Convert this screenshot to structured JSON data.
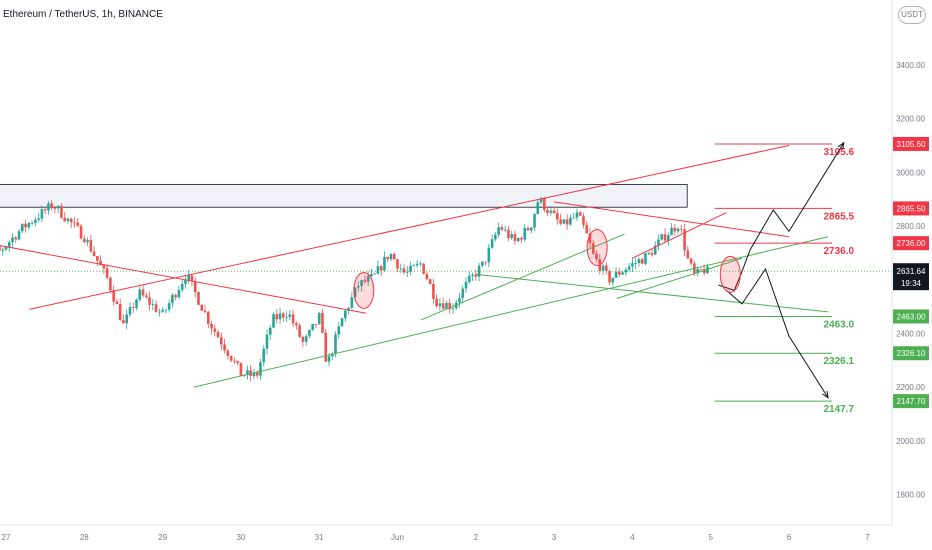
{
  "header": {
    "symbol_line": "Ethereum / TetherUS, 1h, BINANCE",
    "currency_badge": "USDT"
  },
  "colors": {
    "bull": "#26a69a",
    "bear": "#ef5350",
    "resistance": "#f23645",
    "support": "#4caf50",
    "last_price": "#131722",
    "zone_fill": "#f0f2f8",
    "axis_text": "#787b86"
  },
  "chart_data": {
    "type": "candlestick",
    "symbol": "Ethereum / TetherUS",
    "interval": "1h",
    "exchange": "BINANCE",
    "x_tick_labels": [
      "27",
      "28",
      "29",
      "30",
      "31",
      "Jun",
      "2",
      "3",
      "4",
      "5",
      "6",
      "7"
    ],
    "y_tick_labels": [
      "3400.00",
      "3200.00",
      "3000.00",
      "2800.00",
      "2400.00",
      "2200.00",
      "2000.00",
      "1800.00"
    ],
    "ylim": [
      1750,
      3550
    ],
    "x_domain_days": [
      -0.5,
      10.5
    ],
    "close_path": [
      [
        -0.5,
        2880
      ],
      [
        -0.3,
        2760
      ],
      [
        -0.1,
        2700
      ],
      [
        0.2,
        2790
      ],
      [
        0.6,
        2880
      ],
      [
        1.0,
        2760
      ],
      [
        1.3,
        2600
      ],
      [
        1.5,
        2430
      ],
      [
        1.7,
        2550
      ],
      [
        2.0,
        2470
      ],
      [
        2.3,
        2620
      ],
      [
        2.6,
        2440
      ],
      [
        2.9,
        2300
      ],
      [
        3.0,
        2250
      ],
      [
        3.2,
        2240
      ],
      [
        3.4,
        2450
      ],
      [
        3.6,
        2480
      ],
      [
        3.8,
        2360
      ],
      [
        4.0,
        2460
      ],
      [
        4.1,
        2280
      ],
      [
        4.3,
        2460
      ],
      [
        4.5,
        2580
      ],
      [
        4.7,
        2610
      ],
      [
        4.9,
        2700
      ],
      [
        5.1,
        2620
      ],
      [
        5.3,
        2660
      ],
      [
        5.5,
        2520
      ],
      [
        5.7,
        2500
      ],
      [
        5.9,
        2590
      ],
      [
        6.1,
        2660
      ],
      [
        6.3,
        2800
      ],
      [
        6.5,
        2740
      ],
      [
        6.7,
        2800
      ],
      [
        6.8,
        2900
      ],
      [
        7.1,
        2800
      ],
      [
        7.3,
        2840
      ],
      [
        7.4,
        2780
      ],
      [
        7.5,
        2690
      ],
      [
        7.7,
        2600
      ],
      [
        7.9,
        2640
      ],
      [
        8.2,
        2690
      ],
      [
        8.4,
        2760
      ],
      [
        8.6,
        2810
      ],
      [
        8.7,
        2680
      ],
      [
        8.8,
        2610
      ],
      [
        8.9,
        2640
      ],
      [
        9.0,
        2620
      ]
    ],
    "zone": {
      "low": 2870,
      "high": 2955,
      "from_day": -0.5,
      "to_day": 8.7
    },
    "level_lines": [
      {
        "price": 3105.6,
        "label": "3105.6",
        "price_tag": "3105.60",
        "color": "red"
      },
      {
        "price": 2865.5,
        "label": "2865.5",
        "price_tag": "2865.50",
        "color": "red"
      },
      {
        "price": 2736.0,
        "label": "2736.0",
        "price_tag": "2736.00",
        "color": "red"
      },
      {
        "price": 2463.0,
        "label": "2463.0",
        "price_tag": "2463.00",
        "color": "green"
      },
      {
        "price": 2326.1,
        "label": "2326.1",
        "price_tag": "2326.10",
        "color": "green"
      },
      {
        "price": 2147.7,
        "label": "2147.7",
        "price_tag": "2147.70",
        "color": "green"
      }
    ],
    "last_price": {
      "price": 2631.64,
      "label": "2631.64",
      "countdown": "19:34"
    },
    "trend_lines": [
      {
        "color": "red",
        "from": [
          -0.5,
          2750
        ],
        "to": [
          4.6,
          2475
        ]
      },
      {
        "color": "red",
        "from": [
          0.3,
          2490
        ],
        "to": [
          10.0,
          3100
        ]
      },
      {
        "color": "red",
        "from": [
          7.0,
          2890
        ],
        "to": [
          10.0,
          2760
        ]
      },
      {
        "color": "red",
        "from": [
          8.0,
          2680
        ],
        "to": [
          9.2,
          2850
        ]
      },
      {
        "color": "green",
        "from": [
          2.4,
          2200
        ],
        "to": [
          10.5,
          2760
        ]
      },
      {
        "color": "green",
        "from": [
          5.3,
          2450
        ],
        "to": [
          7.9,
          2770
        ]
      },
      {
        "color": "green",
        "from": [
          6.0,
          2620
        ],
        "to": [
          10.5,
          2480
        ]
      },
      {
        "color": "green",
        "from": [
          7.8,
          2530
        ],
        "to": [
          9.4,
          2680
        ]
      }
    ],
    "highlight_circles": [
      {
        "day": 4.57,
        "price": 2560
      },
      {
        "day": 7.55,
        "price": 2720
      },
      {
        "day": 9.25,
        "price": 2620
      }
    ],
    "projection_paths": [
      [
        [
          9.1,
          2580
        ],
        [
          9.3,
          2560
        ],
        [
          9.4,
          2630
        ],
        [
          9.5,
          2710
        ],
        [
          9.8,
          2860
        ],
        [
          10.0,
          2780
        ],
        [
          10.7,
          3110
        ]
      ],
      [
        [
          9.2,
          2560
        ],
        [
          9.4,
          2510
        ],
        [
          9.7,
          2640
        ],
        [
          10.0,
          2390
        ],
        [
          10.5,
          2160
        ]
      ]
    ]
  }
}
